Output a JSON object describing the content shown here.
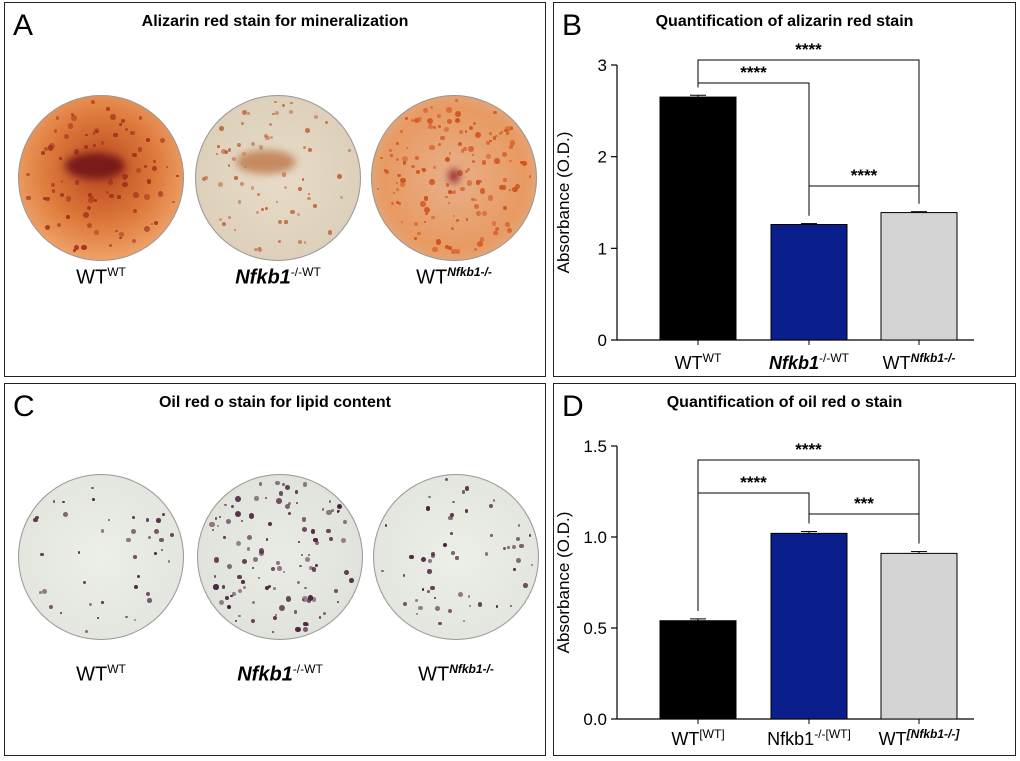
{
  "panels": {
    "A": {
      "label": "A",
      "title": "Alizarin red stain for mineralization",
      "dishes": [
        {
          "base": "WT",
          "sup": "WT",
          "italic": false
        },
        {
          "base": "Nfkb1",
          "sup": "-/-WT",
          "italic": true
        },
        {
          "base": "WT",
          "sup": "Nfkb1-/-",
          "italic": false,
          "sup_italic": true
        }
      ]
    },
    "B": {
      "label": "B"
    },
    "C": {
      "label": "C",
      "title": "Oil red o stain for lipid content",
      "dishes": [
        {
          "base": "WT",
          "sup": "WT",
          "italic": false
        },
        {
          "base": "Nfkb1",
          "sup": "-/-WT",
          "italic": true
        },
        {
          "base": "WT",
          "sup": "Nfkb1-/-",
          "italic": false,
          "sup_italic": true
        }
      ]
    },
    "D": {
      "label": "D"
    }
  },
  "colors": {
    "black_bar": "#000000",
    "blue_bar": "#0b1f8c",
    "grey_bar": "#d4d4d4",
    "alizarin_dark": "#c9481a",
    "oil_spot": "#4a1f3a"
  },
  "chart_data": [
    {
      "id": "B",
      "type": "bar",
      "title": "Quantification of alizarin red stain",
      "ylabel": "Absorbance (O.D.)",
      "xlabel": "",
      "ylim": [
        0,
        3
      ],
      "yticks": [
        "0",
        "1",
        "2",
        "3"
      ],
      "ytick_values": [
        0,
        1,
        2,
        3
      ],
      "categories": [
        {
          "base": "WT",
          "sup": "WT",
          "base_italic": false,
          "sup_italic": false
        },
        {
          "base": "Nfkb1",
          "sup": "-/-WT",
          "base_italic": true,
          "sup_italic": false
        },
        {
          "base": "WT",
          "sup": "Nfkb1-/-",
          "base_italic": false,
          "sup_italic": true
        }
      ],
      "values": [
        2.65,
        1.26,
        1.39
      ],
      "errors": [
        0.02,
        0.01,
        0.01
      ],
      "colors": [
        "#000000",
        "#0b1f8c",
        "#d4d4d4"
      ],
      "significance": [
        {
          "from": 0,
          "to": 1,
          "label": "****"
        },
        {
          "from": 0,
          "to": 2,
          "label": "****"
        },
        {
          "from": 1,
          "to": 2,
          "label": "****"
        }
      ]
    },
    {
      "id": "D",
      "type": "bar",
      "title": "Quantification of oil red o stain",
      "ylabel": "Absorbance (O.D.)",
      "xlabel": "",
      "ylim": [
        0,
        1.5
      ],
      "yticks": [
        "0.0",
        "0.5",
        "1.0",
        "1.5"
      ],
      "ytick_values": [
        0,
        0.5,
        1.0,
        1.5
      ],
      "categories": [
        {
          "base": "WT",
          "sup": "[WT]",
          "base_italic": false,
          "sup_italic": false
        },
        {
          "base": "Nfkb1",
          "sup": "-/-[WT]",
          "base_italic": false,
          "sup_italic": false
        },
        {
          "base": "WT",
          "sup": "[Nfkb1-/-]",
          "base_italic": false,
          "sup_italic": true
        }
      ],
      "values": [
        0.54,
        1.02,
        0.91
      ],
      "errors": [
        0.01,
        0.01,
        0.01
      ],
      "colors": [
        "#000000",
        "#0b1f8c",
        "#d4d4d4"
      ],
      "significance": [
        {
          "from": 0,
          "to": 1,
          "label": "****"
        },
        {
          "from": 0,
          "to": 2,
          "label": "****"
        },
        {
          "from": 1,
          "to": 2,
          "label": "***"
        }
      ]
    }
  ]
}
